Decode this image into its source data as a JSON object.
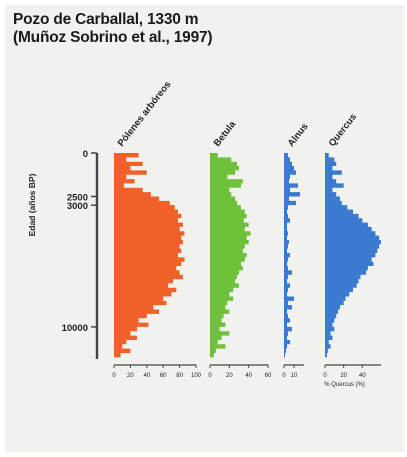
{
  "title": "Pozo de Carballal, 1330 m",
  "subtitle": "(Muñoz Sobrino et al., 1997)",
  "colors": {
    "background": "#f1f2ee",
    "series_1": "#f0612a",
    "series_2": "#6fc13c",
    "series_3": "#3a7bd0",
    "series_4": "#3a7bd0",
    "axis": "#444444"
  },
  "chart_data": {
    "type": "area",
    "ylabel": "Edad (años BP)",
    "yticks": [
      {
        "value": 0,
        "label": "0"
      },
      {
        "value": 2500,
        "label": "2500"
      },
      {
        "value": 3000,
        "label": "3000"
      },
      {
        "value": 10000,
        "label": "10000"
      }
    ],
    "ylim": [
      0,
      11500
    ],
    "y": [
      0,
      250,
      500,
      750,
      1000,
      1250,
      1500,
      1750,
      2000,
      2250,
      2500,
      2750,
      3000,
      3250,
      3500,
      3750,
      4000,
      4250,
      4500,
      4750,
      5000,
      5250,
      5500,
      5750,
      6000,
      6250,
      6500,
      6750,
      7000,
      7250,
      7500,
      7750,
      8000,
      8250,
      8500,
      8750,
      9000,
      9250,
      9500,
      9750,
      10000,
      10250,
      10500,
      10750,
      11000,
      11250,
      11500
    ],
    "series": [
      {
        "name": "Pólenes arbóreos",
        "color": "#f0612a",
        "xmax": 100,
        "xticks": [
          0,
          20,
          40,
          60,
          80,
          100
        ],
        "values": [
          30,
          15,
          35,
          20,
          40,
          15,
          25,
          12,
          35,
          45,
          55,
          68,
          74,
          78,
          82,
          78,
          84,
          80,
          86,
          82,
          84,
          80,
          82,
          78,
          86,
          82,
          76,
          80,
          84,
          72,
          66,
          76,
          70,
          60,
          64,
          48,
          55,
          40,
          30,
          42,
          28,
          20,
          28,
          15,
          10,
          20,
          8
        ]
      },
      {
        "name": "Betula",
        "color": "#6fc13c",
        "xmax": 60,
        "xticks": [
          0,
          20,
          40,
          60
        ],
        "values": [
          8,
          22,
          28,
          30,
          26,
          18,
          34,
          32,
          20,
          22,
          26,
          28,
          32,
          36,
          38,
          35,
          40,
          36,
          42,
          38,
          40,
          36,
          34,
          38,
          36,
          32,
          34,
          30,
          28,
          26,
          30,
          24,
          20,
          24,
          18,
          16,
          20,
          14,
          12,
          16,
          10,
          20,
          12,
          8,
          16,
          6,
          4
        ]
      },
      {
        "name": "Alnus",
        "color": "#3a7bd0",
        "xmax": 20,
        "xticks": [
          0,
          10
        ],
        "values": [
          4,
          6,
          8,
          10,
          12,
          6,
          5,
          14,
          6,
          16,
          5,
          12,
          4,
          3,
          4,
          6,
          3,
          3,
          4,
          3,
          5,
          4,
          3,
          6,
          4,
          3,
          4,
          8,
          4,
          3,
          6,
          4,
          3,
          10,
          4,
          8,
          3,
          4,
          6,
          3,
          8,
          4,
          3,
          6,
          3,
          2,
          1
        ]
      },
      {
        "name": "Quercus",
        "color": "#3a7bd0",
        "xmax": 60,
        "xticks": [
          0,
          20,
          40
        ],
        "xlabel": "% Quercus (%)",
        "values": [
          4,
          10,
          12,
          8,
          18,
          8,
          12,
          20,
          8,
          12,
          16,
          18,
          24,
          30,
          36,
          40,
          46,
          50,
          54,
          58,
          60,
          58,
          56,
          54,
          50,
          52,
          46,
          44,
          38,
          36,
          34,
          30,
          26,
          22,
          20,
          16,
          14,
          12,
          10,
          8,
          10,
          6,
          8,
          4,
          6,
          3,
          2
        ]
      }
    ]
  }
}
